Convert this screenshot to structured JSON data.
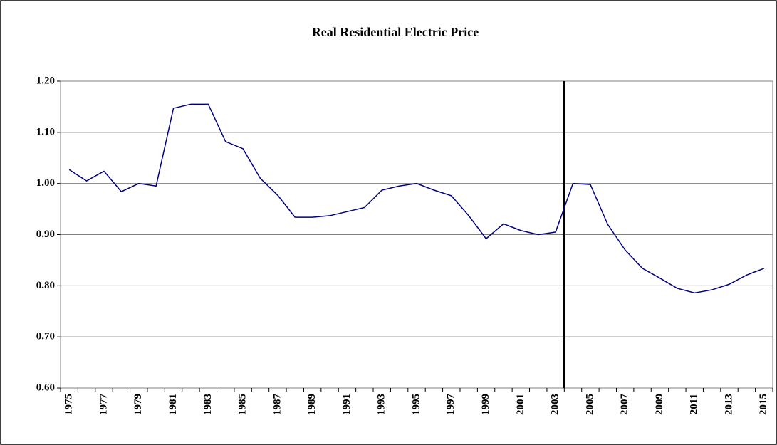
{
  "chart_data": {
    "type": "line",
    "title": "Real Residential Electric Price",
    "categories": [
      "1975",
      null,
      "1977",
      null,
      "1979",
      null,
      "1981",
      null,
      "1983",
      null,
      "1985",
      null,
      "1987",
      null,
      "1989",
      null,
      "1991",
      null,
      "1993",
      null,
      "1995",
      null,
      "1997",
      null,
      "1999",
      null,
      "2001",
      null,
      "2003",
      null,
      "2005",
      null,
      "2007",
      null,
      "2009",
      null,
      "2011",
      null,
      "2013",
      null,
      "2015"
    ],
    "series": [
      {
        "color": "#000080",
        "values": [
          1.027,
          1.005,
          1.024,
          0.984,
          1.0,
          0.995,
          1.147,
          1.155,
          1.155,
          1.082,
          1.068,
          1.01,
          0.977,
          0.934,
          0.934,
          0.937,
          0.945,
          0.953,
          0.987,
          0.995,
          1.0,
          0.987,
          0.976,
          0.937,
          0.892,
          0.921,
          0.908,
          0.9,
          0.905,
          1.0,
          0.998,
          0.92,
          0.87,
          0.834,
          0.815,
          0.795,
          0.786,
          0.792,
          0.803,
          0.821,
          0.834
        ]
      }
    ],
    "ylim": [
      0.6,
      1.2
    ],
    "yticks": [
      {
        "value": 0.6,
        "label": "0.60"
      },
      {
        "value": 0.7,
        "label": "0.70"
      },
      {
        "value": 0.8,
        "label": "0.80"
      },
      {
        "value": 0.9,
        "label": "0.90"
      },
      {
        "value": 1.0,
        "label": "1.00"
      },
      {
        "value": 1.1,
        "label": "1.10"
      },
      {
        "value": 1.2,
        "label": "1.20"
      }
    ],
    "grid": true,
    "vline": 28.5,
    "vline_color": "#000000"
  }
}
